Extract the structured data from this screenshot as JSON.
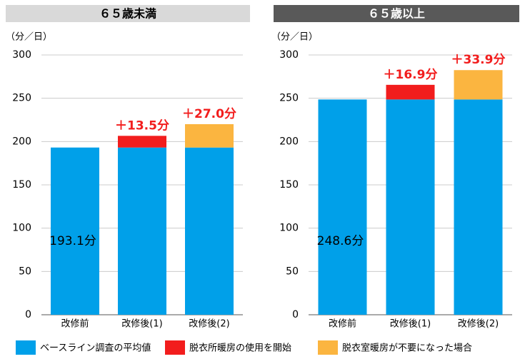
{
  "chart_data": [
    {
      "type": "bar",
      "title": "６５歳未満",
      "ylabel": "（分／日）",
      "categories": [
        "改修前",
        "改修後(1)",
        "改修後(2)"
      ],
      "ylim": [
        0,
        300
      ],
      "yticks": [
        0,
        50,
        100,
        150,
        200,
        250,
        300
      ],
      "grid": true,
      "stacked": true,
      "legend": "bottom",
      "series": [
        {
          "name": "ベースライン調査の平均値",
          "color": "#00a0e9",
          "values": [
            193.1,
            193.1,
            193.1
          ],
          "value_labels": [
            "193.1分",
            null,
            null
          ]
        },
        {
          "name": "脱衣所暖房の使用を開始",
          "color": "#f21d1d",
          "values": [
            null,
            13.5,
            null
          ],
          "value_labels": [
            null,
            "＋13.5分",
            null
          ]
        },
        {
          "name": "脱衣室暖房が不要になった場合",
          "color": "#fbb540",
          "values": [
            null,
            null,
            27.0
          ],
          "value_labels": [
            null,
            null,
            "＋27.0分"
          ]
        }
      ]
    },
    {
      "type": "bar",
      "title": "６５歳以上",
      "ylabel": "（分／日）",
      "categories": [
        "改修前",
        "改修後(1)",
        "改修後(2)"
      ],
      "ylim": [
        0,
        300
      ],
      "yticks": [
        0,
        50,
        100,
        150,
        200,
        250,
        300
      ],
      "grid": true,
      "stacked": true,
      "series": [
        {
          "name": "ベースライン調査の平均値",
          "color": "#00a0e9",
          "values": [
            248.6,
            248.6,
            248.6
          ],
          "value_labels": [
            "248.6分",
            null,
            null
          ]
        },
        {
          "name": "脱衣所暖房の使用を開始",
          "color": "#f21d1d",
          "values": [
            null,
            16.9,
            null
          ],
          "value_labels": [
            null,
            "＋16.9分",
            null
          ]
        },
        {
          "name": "脱衣室暖房が不要になった場合",
          "color": "#fbb540",
          "values": [
            null,
            null,
            33.9
          ],
          "value_labels": [
            null,
            null,
            "＋33.9分"
          ]
        }
      ]
    }
  ]
}
